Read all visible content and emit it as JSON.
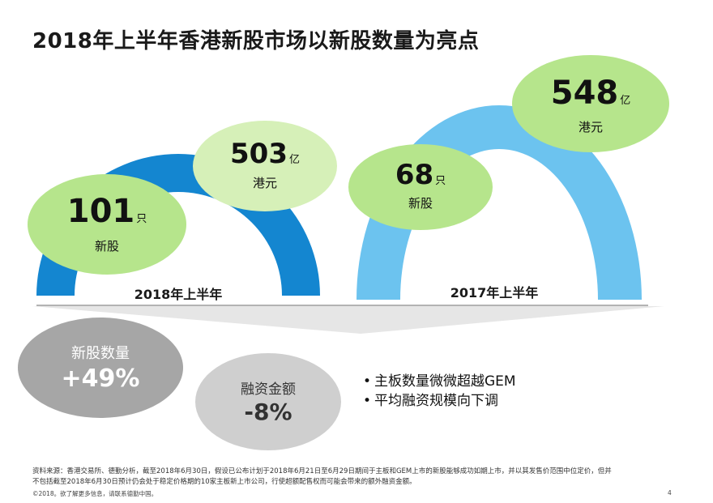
{
  "title": "2018年上半年香港新股市场以新股数量为亮点",
  "period_2018": {
    "label": "2018年上半年",
    "ipo_count": "101",
    "ipo_unit": "只",
    "ipo_caption": "新股",
    "funds": "503",
    "funds_unit": "亿",
    "funds_caption": "港元"
  },
  "period_2017": {
    "label": "2017年上半年",
    "ipo_count": "68",
    "ipo_unit": "只",
    "ipo_caption": "新股",
    "funds": "548",
    "funds_unit": "亿",
    "funds_caption": "港元"
  },
  "changes": {
    "count": {
      "label": "新股数量",
      "value": "+49%"
    },
    "funds": {
      "label": "融资金额",
      "value": "-8%"
    }
  },
  "bullets": [
    "主板数量微微超越GEM",
    "平均融资规模向下调"
  ],
  "bullet_glyph": "•",
  "source_note": {
    "line1": "资料来源：香港交易所、德勤分析，截至2018年6月30日，假设已公布计划于2018年6月21日至6月29日期间于主板和GEM上市的新股能够成功如期上市，并以其发售价范围中位定价，但并",
    "line2": "不包括截至2018年6月30日预计仍会处于稳定价格期的10家主板新上市公司，行使超额配售权而可能会带来的额外融资金额。"
  },
  "footer": {
    "copyright": "©2018。欲了解更多信息，请联系德勤中国。",
    "page_number": "4"
  },
  "colors": {
    "arch_2018": "#1486d0",
    "arch_2017": "#6cc3ef",
    "bubble_green": "#b6e58c",
    "bubble_green_light": "#d6f0b8",
    "stat_dark_gray": "#a6a6a6",
    "stat_light_gray": "#cfcfcf",
    "funnel_gray": "#e6e6e6"
  }
}
